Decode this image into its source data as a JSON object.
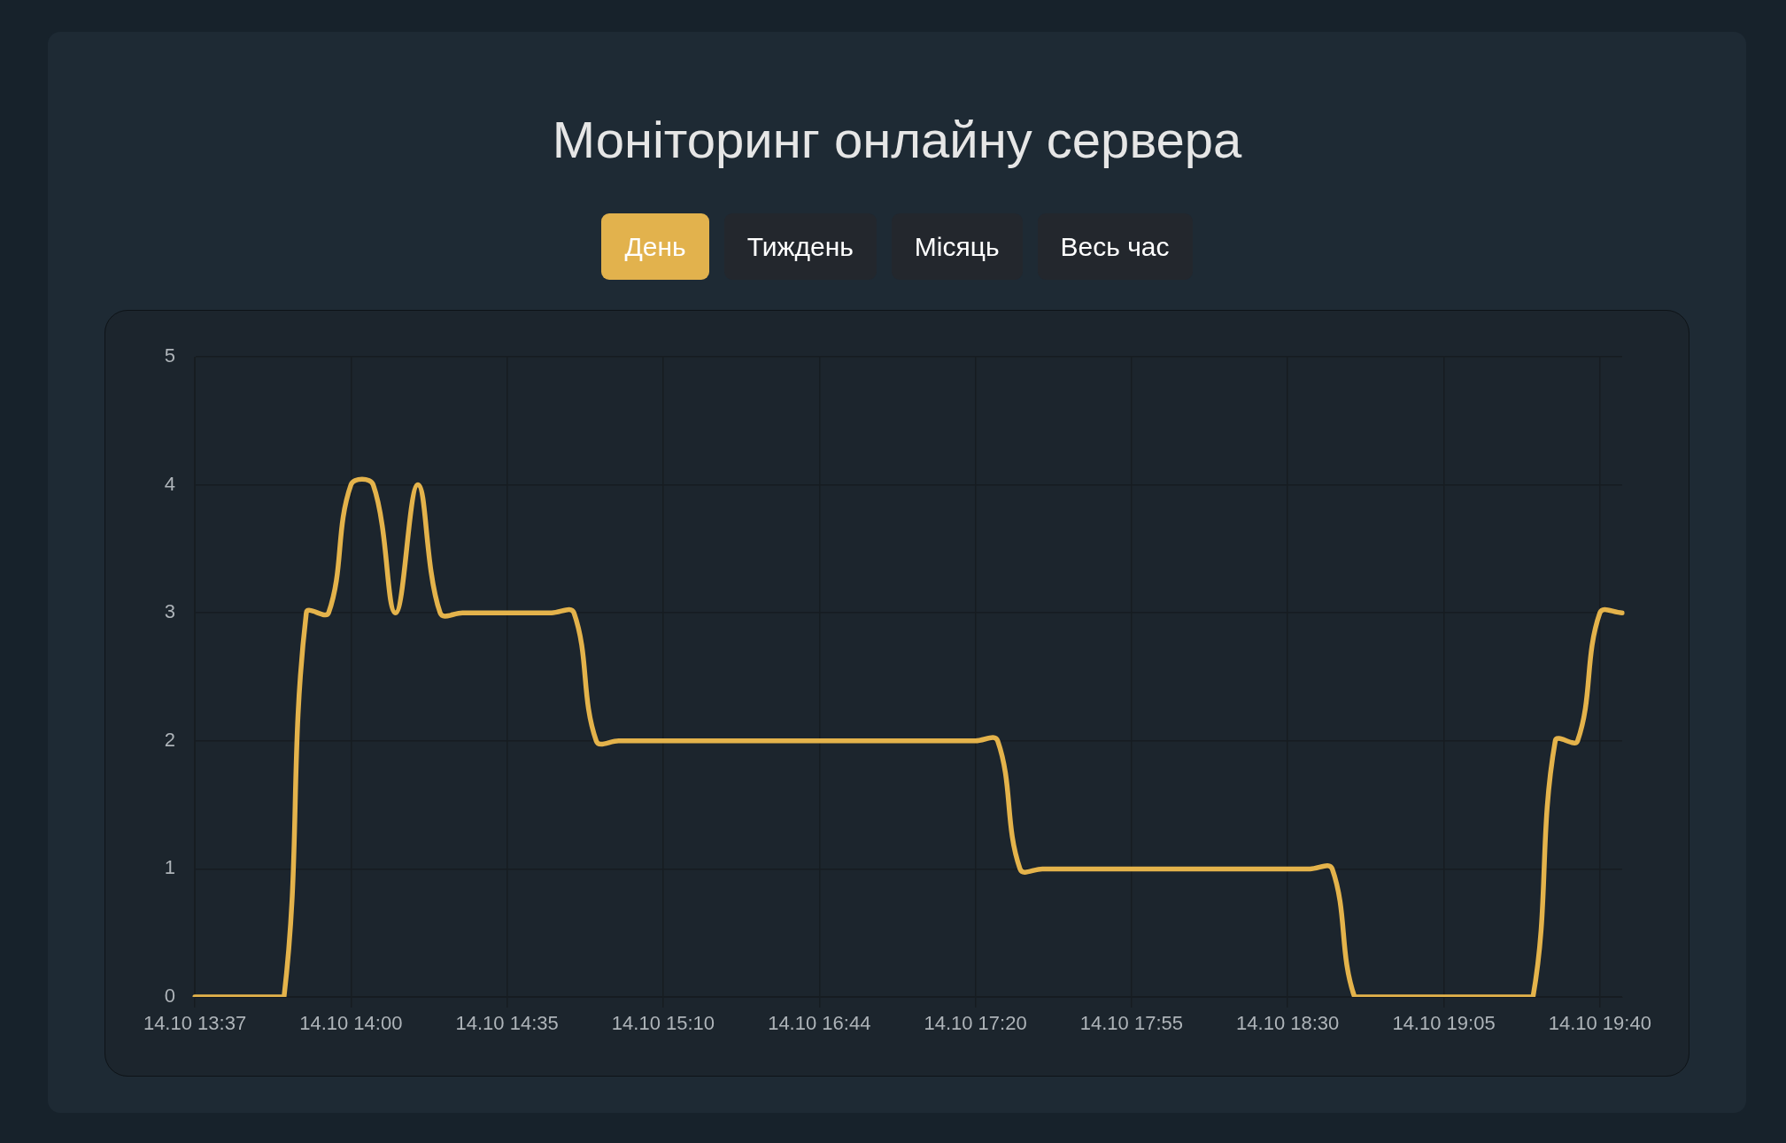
{
  "chart_data": {
    "type": "line",
    "title": "Моніторинг онлайну сервера",
    "annotations": [
      "День",
      "Тиждень",
      "Місяць",
      "Весь час"
    ],
    "categories": [
      "14.10 13:37",
      null,
      null,
      null,
      null,
      null,
      null,
      "14.10 14:00",
      null,
      null,
      null,
      null,
      null,
      null,
      "14.10 14:35",
      null,
      null,
      null,
      null,
      null,
      null,
      "14.10 15:10",
      null,
      null,
      null,
      null,
      null,
      null,
      "14.10 16:44",
      null,
      null,
      null,
      null,
      null,
      null,
      "14.10 17:20",
      null,
      null,
      null,
      null,
      null,
      null,
      "14.10 17:55",
      null,
      null,
      null,
      null,
      null,
      null,
      "14.10 18:30",
      null,
      null,
      null,
      null,
      null,
      null,
      "14.10 19:05",
      null,
      null,
      null,
      null,
      null,
      null,
      "14.10 19:40",
      null
    ],
    "values": [
      0,
      0,
      0,
      0,
      0,
      3,
      3,
      4,
      4,
      3,
      4,
      3,
      3,
      3,
      3,
      3,
      3,
      3,
      2,
      2,
      2,
      2,
      2,
      2,
      2,
      2,
      2,
      2,
      2,
      2,
      2,
      2,
      2,
      2,
      2,
      2,
      2,
      1,
      1,
      1,
      1,
      1,
      1,
      1,
      1,
      1,
      1,
      1,
      1,
      1,
      1,
      1,
      0,
      0,
      0,
      0,
      0,
      0,
      0,
      0,
      0,
      2,
      2,
      3,
      3
    ],
    "color": "#e4b34b",
    "ylim": [
      0,
      5
    ],
    "yticks": [
      0,
      1,
      2,
      3,
      4,
      5
    ],
    "grid": true,
    "marker": "none",
    "line_style": "solid"
  }
}
